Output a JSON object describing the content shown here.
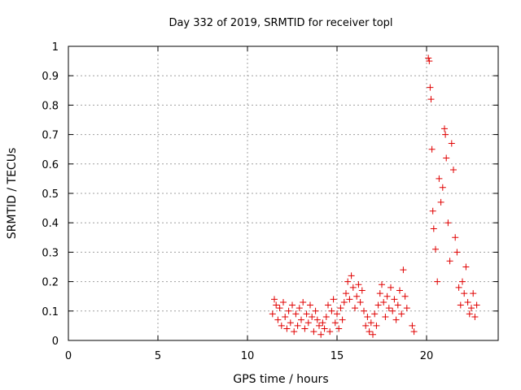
{
  "chart_data": {
    "type": "scatter",
    "title": "Day 332 of 2019, SRMTID for receiver topl",
    "xlabel": "GPS time / hours",
    "ylabel": "SRMTID / TECUs",
    "xlim": [
      0,
      24
    ],
    "ylim": [
      0,
      1
    ],
    "xticks": [
      0,
      5,
      10,
      15,
      20
    ],
    "xtick_labels": [
      "0",
      "5",
      "10",
      "15",
      "20"
    ],
    "yticks": [
      0,
      0.1,
      0.2,
      0.3,
      0.4,
      0.5,
      0.6,
      0.7,
      0.8,
      0.9,
      1
    ],
    "ytick_labels": [
      "0",
      "0.1",
      "0.2",
      "0.3",
      "0.4",
      "0.5",
      "0.6",
      "0.7",
      "0.8",
      "0.9",
      "1"
    ],
    "grid": true,
    "marker": "+",
    "color": "#e00000",
    "series": [
      {
        "name": "SRMTID",
        "points": [
          [
            11.4,
            0.09
          ],
          [
            11.5,
            0.14
          ],
          [
            11.6,
            0.12
          ],
          [
            11.7,
            0.07
          ],
          [
            11.8,
            0.11
          ],
          [
            11.9,
            0.05
          ],
          [
            12.0,
            0.13
          ],
          [
            12.1,
            0.08
          ],
          [
            12.2,
            0.04
          ],
          [
            12.3,
            0.1
          ],
          [
            12.4,
            0.06
          ],
          [
            12.5,
            0.12
          ],
          [
            12.6,
            0.03
          ],
          [
            12.7,
            0.09
          ],
          [
            12.8,
            0.05
          ],
          [
            12.9,
            0.11
          ],
          [
            13.0,
            0.07
          ],
          [
            13.1,
            0.13
          ],
          [
            13.2,
            0.04
          ],
          [
            13.3,
            0.09
          ],
          [
            13.4,
            0.06
          ],
          [
            13.5,
            0.12
          ],
          [
            13.6,
            0.08
          ],
          [
            13.7,
            0.03
          ],
          [
            13.8,
            0.1
          ],
          [
            13.9,
            0.07
          ],
          [
            14.0,
            0.05
          ],
          [
            14.1,
            0.02
          ],
          [
            14.2,
            0.06
          ],
          [
            14.3,
            0.04
          ],
          [
            14.4,
            0.08
          ],
          [
            14.5,
            0.12
          ],
          [
            14.6,
            0.03
          ],
          [
            14.7,
            0.1
          ],
          [
            14.8,
            0.14
          ],
          [
            14.9,
            0.06
          ],
          [
            15.0,
            0.09
          ],
          [
            15.1,
            0.04
          ],
          [
            15.2,
            0.11
          ],
          [
            15.3,
            0.07
          ],
          [
            15.4,
            0.13
          ],
          [
            15.5,
            0.16
          ],
          [
            15.6,
            0.2
          ],
          [
            15.7,
            0.14
          ],
          [
            15.8,
            0.22
          ],
          [
            15.9,
            0.18
          ],
          [
            16.0,
            0.11
          ],
          [
            16.1,
            0.15
          ],
          [
            16.2,
            0.19
          ],
          [
            16.3,
            0.13
          ],
          [
            16.4,
            0.17
          ],
          [
            16.5,
            0.1
          ],
          [
            16.6,
            0.05
          ],
          [
            16.7,
            0.08
          ],
          [
            16.8,
            0.03
          ],
          [
            16.9,
            0.06
          ],
          [
            17.0,
            0.02
          ],
          [
            17.1,
            0.09
          ],
          [
            17.2,
            0.05
          ],
          [
            17.3,
            0.12
          ],
          [
            17.4,
            0.16
          ],
          [
            17.5,
            0.19
          ],
          [
            17.6,
            0.13
          ],
          [
            17.7,
            0.08
          ],
          [
            17.8,
            0.15
          ],
          [
            17.9,
            0.11
          ],
          [
            18.0,
            0.18
          ],
          [
            18.1,
            0.1
          ],
          [
            18.2,
            0.14
          ],
          [
            18.3,
            0.07
          ],
          [
            18.4,
            0.12
          ],
          [
            18.5,
            0.17
          ],
          [
            18.6,
            0.09
          ],
          [
            18.7,
            0.24
          ],
          [
            18.8,
            0.15
          ],
          [
            18.9,
            0.11
          ],
          [
            19.2,
            0.05
          ],
          [
            19.3,
            0.03
          ],
          [
            20.1,
            0.96
          ],
          [
            20.15,
            0.95
          ],
          [
            20.2,
            0.86
          ],
          [
            20.25,
            0.82
          ],
          [
            20.3,
            0.65
          ],
          [
            20.35,
            0.44
          ],
          [
            20.4,
            0.38
          ],
          [
            20.5,
            0.31
          ],
          [
            20.6,
            0.2
          ],
          [
            20.7,
            0.55
          ],
          [
            20.8,
            0.47
          ],
          [
            20.9,
            0.52
          ],
          [
            21.0,
            0.72
          ],
          [
            21.05,
            0.7
          ],
          [
            21.1,
            0.62
          ],
          [
            21.2,
            0.4
          ],
          [
            21.3,
            0.27
          ],
          [
            21.4,
            0.67
          ],
          [
            21.5,
            0.58
          ],
          [
            21.6,
            0.35
          ],
          [
            21.7,
            0.3
          ],
          [
            21.8,
            0.18
          ],
          [
            21.9,
            0.12
          ],
          [
            22.0,
            0.2
          ],
          [
            22.1,
            0.16
          ],
          [
            22.2,
            0.25
          ],
          [
            22.3,
            0.13
          ],
          [
            22.4,
            0.09
          ],
          [
            22.5,
            0.11
          ],
          [
            22.6,
            0.16
          ],
          [
            22.7,
            0.08
          ],
          [
            22.8,
            0.12
          ]
        ]
      }
    ]
  }
}
